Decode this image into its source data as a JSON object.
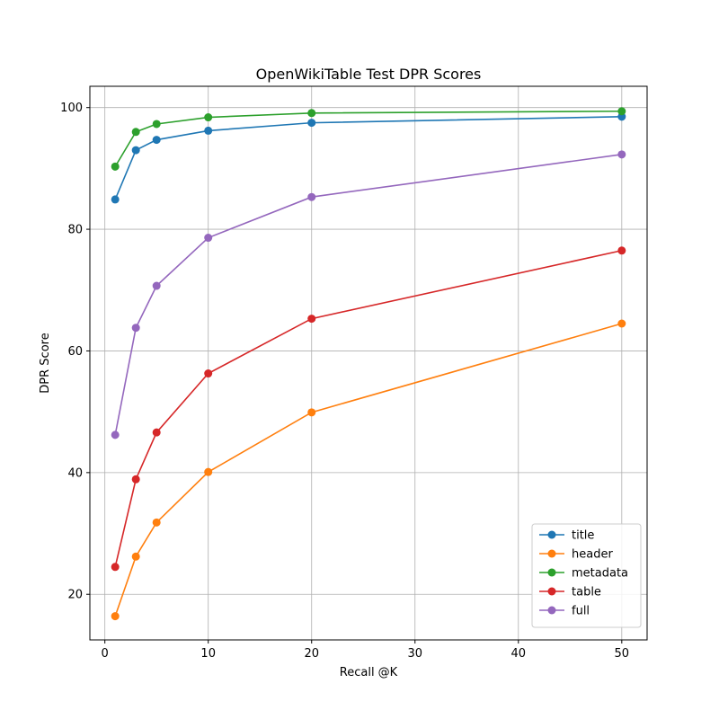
{
  "chart_data": {
    "type": "line",
    "title": "OpenWikiTable Test DPR Scores",
    "xlabel": "Recall @K",
    "ylabel": "DPR Score",
    "x": [
      1,
      3,
      5,
      10,
      20,
      50
    ],
    "xlim": [
      -1.45,
      52.45
    ],
    "ylim": [
      12.5,
      103.5
    ],
    "xticks": [
      0,
      10,
      20,
      30,
      40,
      50
    ],
    "yticks": [
      20,
      40,
      60,
      80,
      100
    ],
    "grid": true,
    "legend_position": "lower-right",
    "series": [
      {
        "name": "title",
        "color": "#1f77b4",
        "values": [
          84.9,
          93.0,
          94.7,
          96.2,
          97.5,
          98.5
        ]
      },
      {
        "name": "header",
        "color": "#ff7f0e",
        "values": [
          16.4,
          26.2,
          31.8,
          40.1,
          49.9,
          64.5
        ]
      },
      {
        "name": "metadata",
        "color": "#2ca02c",
        "values": [
          90.3,
          96.0,
          97.3,
          98.4,
          99.1,
          99.4
        ]
      },
      {
        "name": "table",
        "color": "#d62728",
        "values": [
          24.5,
          38.9,
          46.6,
          56.3,
          65.3,
          76.5
        ]
      },
      {
        "name": "full",
        "color": "#9467bd",
        "values": [
          46.2,
          63.8,
          70.7,
          78.6,
          85.3,
          92.3
        ]
      }
    ]
  }
}
